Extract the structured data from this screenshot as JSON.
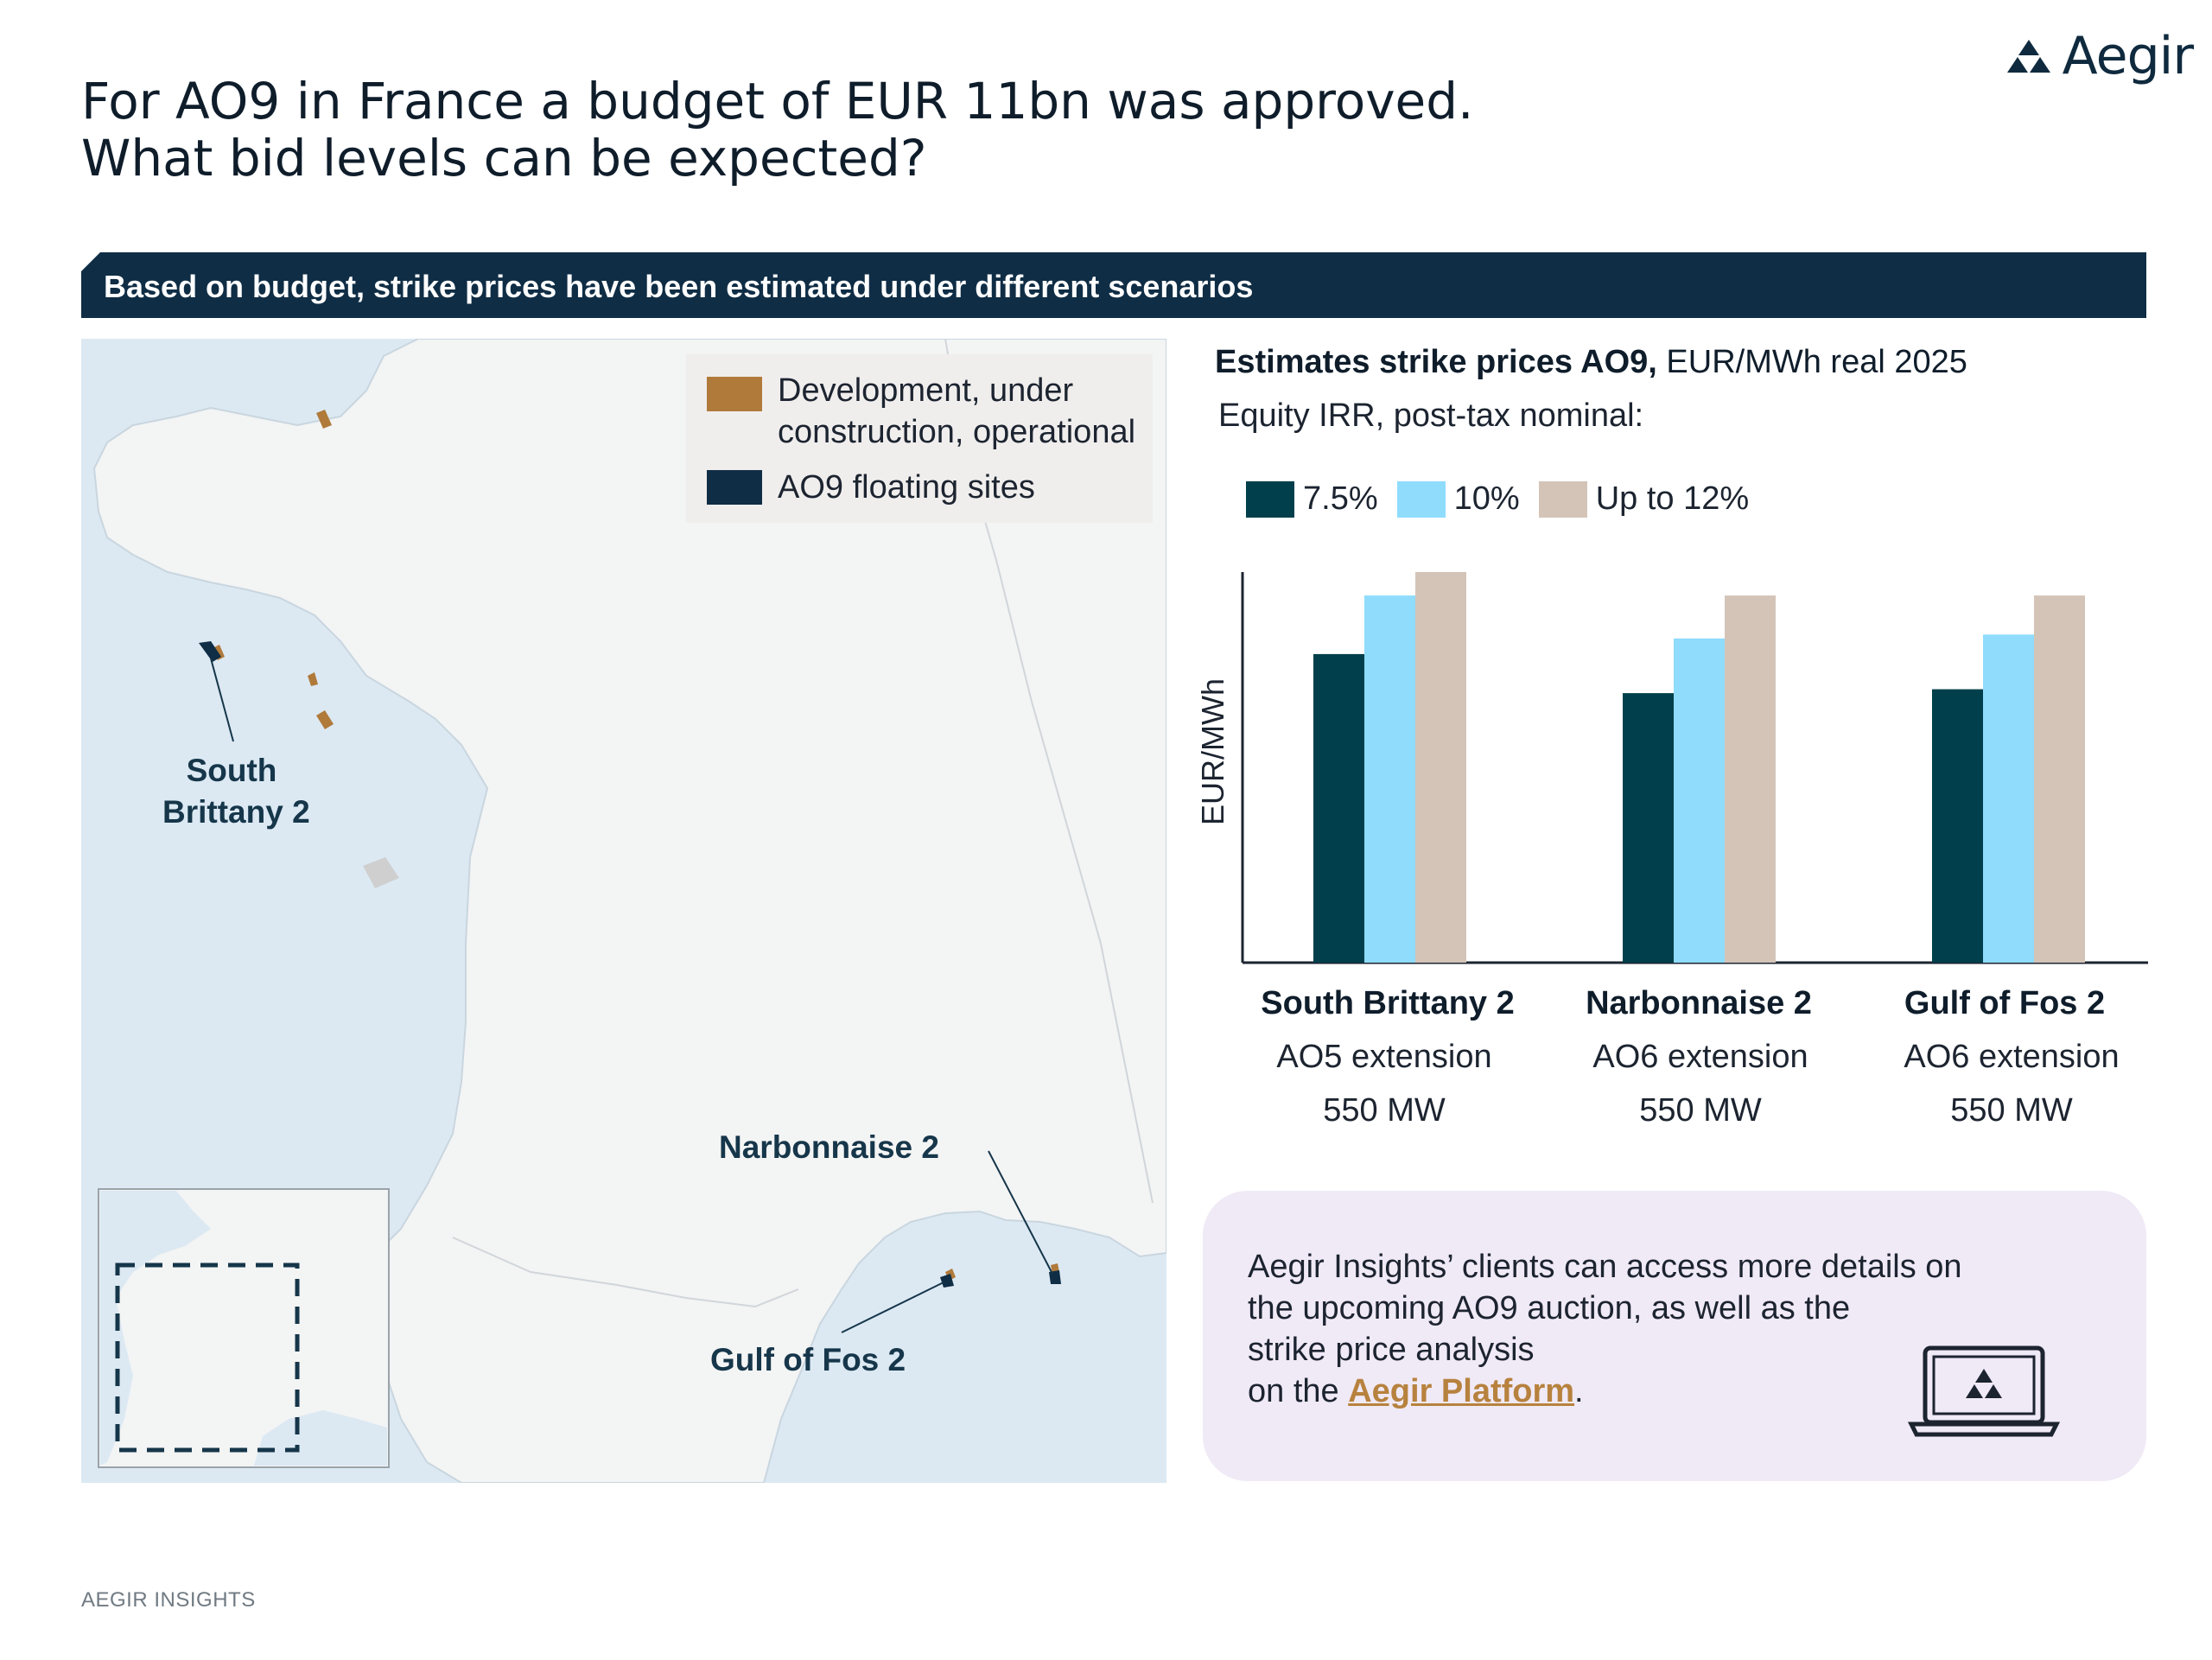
{
  "brand": {
    "name": "Aegir",
    "logo_icon": "aegir-triangles-icon"
  },
  "header": {
    "title_line1": "For AO9 in France a budget of EUR 11bn was approved.",
    "title_line2": "What bid levels can be expected?"
  },
  "banner": {
    "text": "Based on budget, strike prices have been estimated under different scenarios"
  },
  "map": {
    "legend": [
      {
        "label_line1": "Development, under",
        "label_line2": "construction, operational",
        "color": "#b07a3a"
      },
      {
        "label_line1": "AO9 floating sites",
        "color": "#0f2d45"
      }
    ],
    "labels": {
      "south_brittany_line1": "South",
      "south_brittany_line2": "Brittany 2",
      "narbonnaise": "Narbonnaise 2",
      "gulf_of_fos": "Gulf of Fos 2"
    },
    "colors": {
      "sea": "#dce9f3",
      "land": "#f3f4f4",
      "border": "#cfd4d8"
    }
  },
  "chart_data": {
    "type": "bar",
    "title_bold": "Estimates strike prices AO9,",
    "title_rest": " EUR/MWh real 2025",
    "subtitle": "Equity IRR, post-tax nominal:",
    "ylabel": "EUR/MWh",
    "ylim": [
      0,
      100
    ],
    "categories": [
      "South Brittany 2",
      "Narbonnaise 2",
      "Gulf of Fos 2"
    ],
    "category_details": [
      {
        "sub1": "AO5 extension",
        "sub2": "550 MW"
      },
      {
        "sub1": "AO6 extension",
        "sub2": "550 MW"
      },
      {
        "sub1": "AO6 extension",
        "sub2": "550 MW"
      }
    ],
    "series": [
      {
        "name": "7.5%",
        "color": "#003f4b",
        "values": [
          79,
          69,
          70
        ]
      },
      {
        "name": "10%",
        "color": "#8fdcfd",
        "values": [
          94,
          83,
          84
        ]
      },
      {
        "name": "Up to 12%",
        "color": "#d4c4b8",
        "values": [
          100,
          94,
          94
        ]
      }
    ]
  },
  "info": {
    "line1": "Aegir Insights’ clients can access more details on",
    "line2": "the upcoming AO9 auction, as well as the",
    "line3": "strike price analysis",
    "line4_prefix": "on the ",
    "link_text": "Aegir Platform",
    "line4_suffix": ".",
    "icon": "laptop-icon"
  },
  "footer": {
    "text": "AEGIR INSIGHTS"
  }
}
